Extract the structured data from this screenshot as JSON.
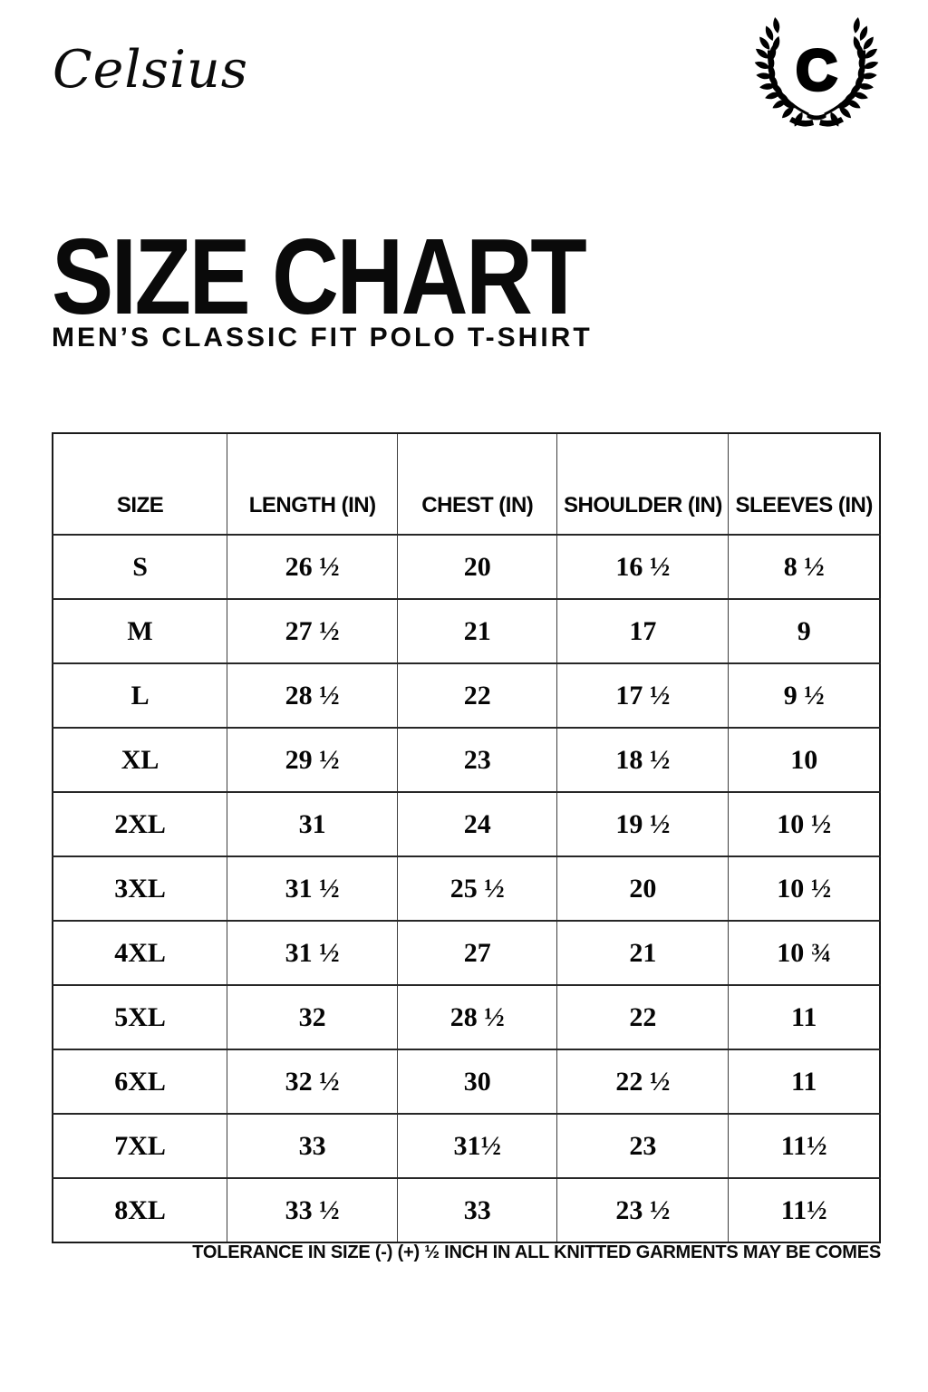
{
  "brand": {
    "wordmark": "Celsius",
    "logo_letter": "C"
  },
  "header": {
    "title": "SIZE CHART",
    "subtitle": "MEN’S CLASSIC FIT POLO T-SHIRT"
  },
  "table": {
    "columns": [
      "SIZE",
      "LENGTH (IN)",
      "CHEST (IN)",
      "SHOULDER (IN)",
      "SLEEVES (IN)"
    ],
    "row_keys": [
      "size",
      "length",
      "chest",
      "shoulder",
      "sleeves"
    ],
    "rows": [
      {
        "size": "S",
        "length": "26 ½",
        "chest": "20",
        "shoulder": "16 ½",
        "sleeves": "8 ½"
      },
      {
        "size": "M",
        "length": "27 ½",
        "chest": "21",
        "shoulder": "17",
        "sleeves": "9"
      },
      {
        "size": "L",
        "length": "28 ½",
        "chest": "22",
        "shoulder": "17 ½",
        "sleeves": "9 ½"
      },
      {
        "size": "XL",
        "length": "29 ½",
        "chest": "23",
        "shoulder": "18 ½",
        "sleeves": "10"
      },
      {
        "size": "2XL",
        "length": "31",
        "chest": "24",
        "shoulder": "19 ½",
        "sleeves": "10 ½"
      },
      {
        "size": "3XL",
        "length": "31 ½",
        "chest": "25 ½",
        "shoulder": "20",
        "sleeves": "10 ½"
      },
      {
        "size": "4XL",
        "length": "31 ½",
        "chest": "27",
        "shoulder": "21",
        "sleeves": "10 ¾"
      },
      {
        "size": "5XL",
        "length": "32",
        "chest": "28 ½",
        "shoulder": "22",
        "sleeves": "11"
      },
      {
        "size": "6XL",
        "length": "32 ½",
        "chest": "30",
        "shoulder": "22 ½",
        "sleeves": "11"
      },
      {
        "size": "7XL",
        "length": "33",
        "chest": "31½",
        "shoulder": "23",
        "sleeves": "11½"
      },
      {
        "size": "8XL",
        "length": "33 ½",
        "chest": "33",
        "shoulder": "23 ½",
        "sleeves": "11½"
      }
    ]
  },
  "footnote": "TOLERANCE IN SIZE (-) (+) ½ INCH IN ALL KNITTED GARMENTS MAY BE COMES",
  "colors": {
    "ink": "#000000",
    "background": "#ffffff",
    "table_border": "#1b1b1b"
  }
}
